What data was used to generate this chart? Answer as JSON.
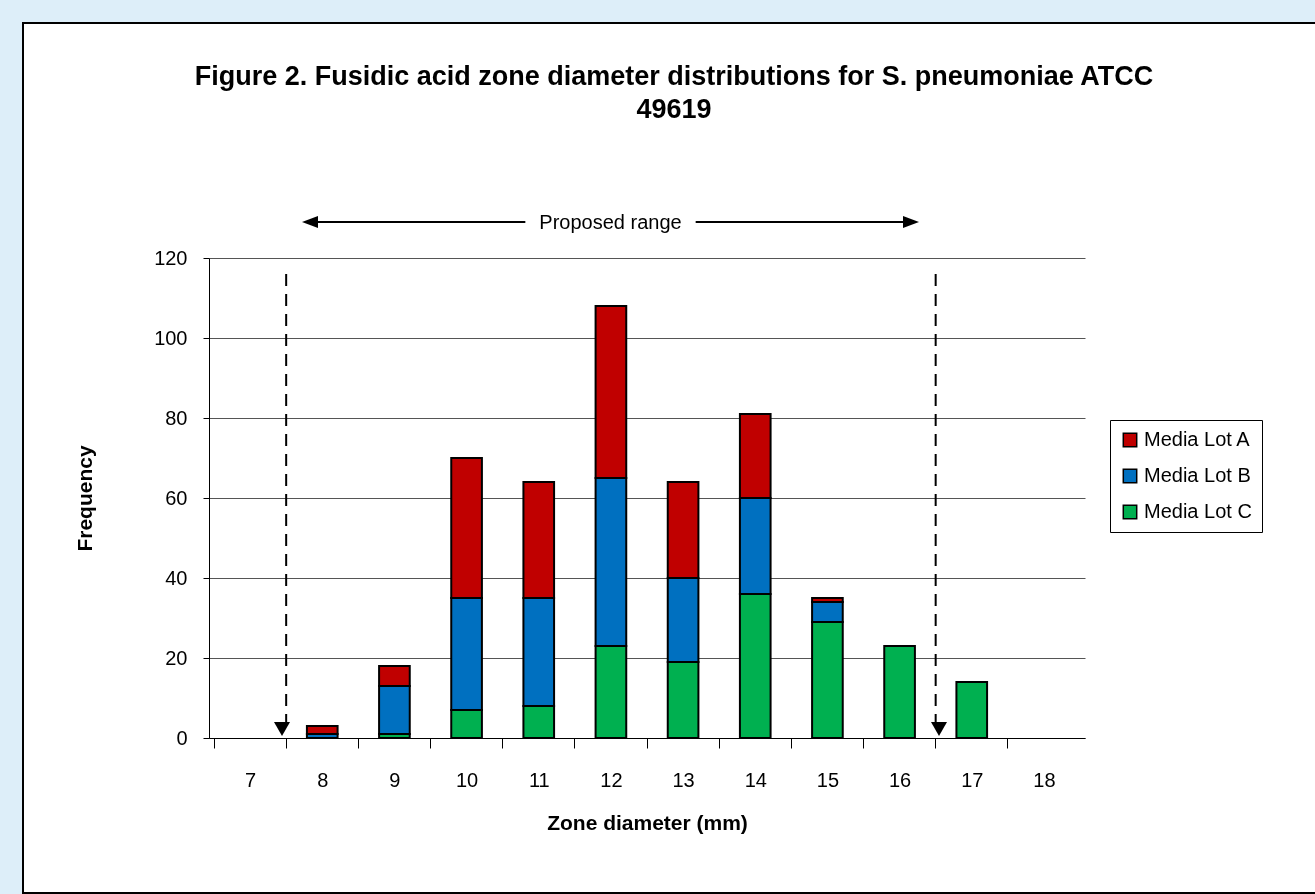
{
  "chart_data": {
    "type": "bar",
    "title": "Figure 2. Fusidic acid zone diameter distributions for S. pneumoniae ATCC 49619",
    "xlabel": "Zone diameter (mm)",
    "ylabel": "Frequency",
    "x": [
      7,
      8,
      9,
      10,
      11,
      12,
      13,
      14,
      15,
      16,
      17,
      18
    ],
    "xlim": [
      6.5,
      18.5
    ],
    "xticks": [
      7,
      8,
      9,
      10,
      11,
      12,
      13,
      14,
      15,
      16,
      17,
      18
    ],
    "stacked": true,
    "series": [
      {
        "name": "Media Lot C",
        "color": "#00b050",
        "values": [
          0,
          0,
          1,
          7,
          8,
          23,
          19,
          36,
          29,
          23,
          14,
          0
        ]
      },
      {
        "name": "Media Lot B",
        "color": "#0070c0",
        "values": [
          0,
          1,
          12,
          28,
          27,
          42,
          21,
          24,
          5,
          0,
          0,
          0
        ]
      },
      {
        "name": "Media Lot A",
        "color": "#c00000",
        "values": [
          0,
          2,
          5,
          35,
          29,
          43,
          24,
          21,
          1,
          0,
          0,
          0
        ]
      }
    ],
    "ylim": [
      0,
      120
    ],
    "yticks": [
      0,
      20,
      40,
      60,
      80,
      100,
      120
    ],
    "grid": "y",
    "legend": "right",
    "ref_lines": [
      {
        "axis": "x",
        "value": 7.5,
        "color": "#000000",
        "line_style": "dashed"
      },
      {
        "axis": "x",
        "value": 16.5,
        "color": "#000000",
        "line_style": "dashed"
      }
    ],
    "annotations": [
      "Proposed range"
    ]
  }
}
